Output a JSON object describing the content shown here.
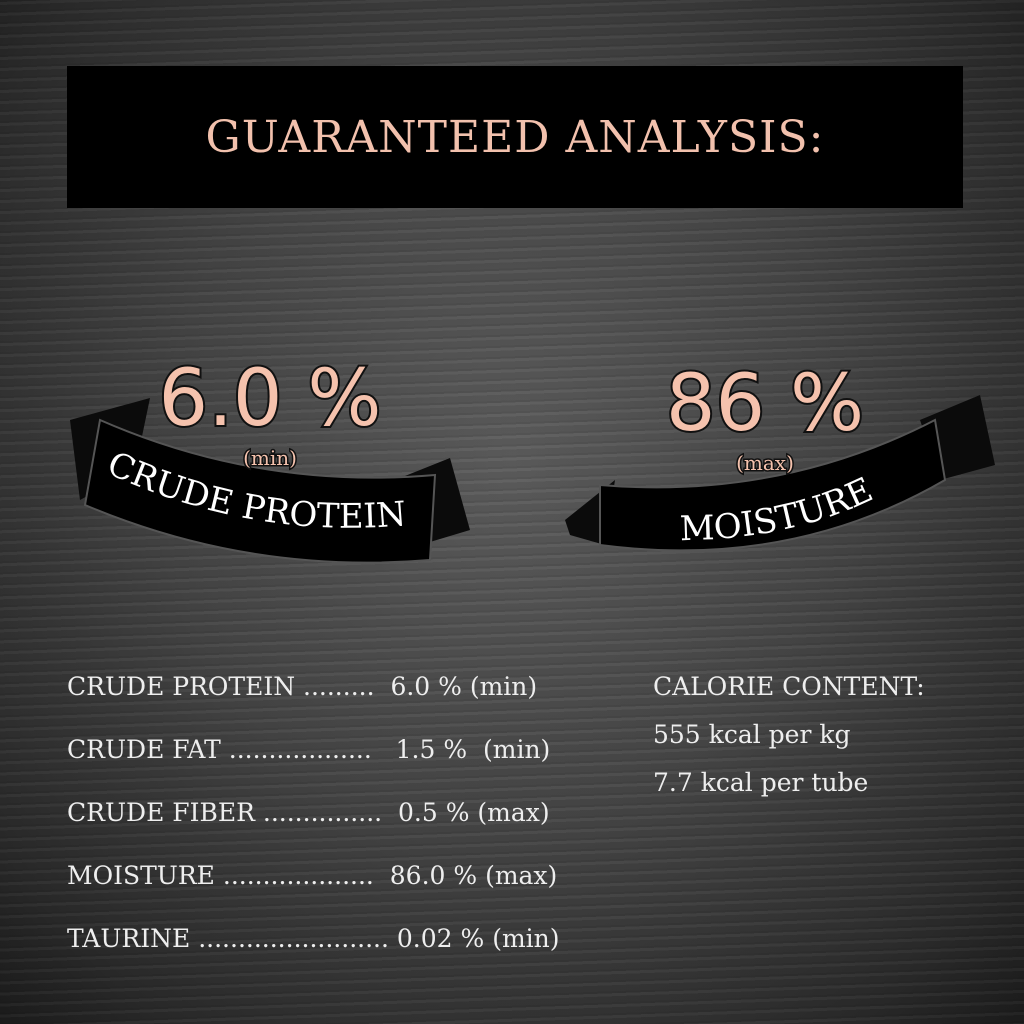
{
  "title": "GUARANTEED ANALYSIS:",
  "badges": [
    {
      "value": "6.0 %",
      "qualifier": "(min)",
      "label": "CRUDE PROTEIN"
    },
    {
      "value": "86 %",
      "qualifier": "(max)",
      "label": "MOISTURE"
    }
  ],
  "analysis": [
    {
      "name": "CRUDE PROTEIN",
      "dots": " .........",
      "value": "  6.0 % (min)"
    },
    {
      "name": "CRUDE FAT",
      "dots": " ..................",
      "value": "   1.5 %  (min)"
    },
    {
      "name": "CRUDE FIBER",
      "dots": " ...............",
      "value": "  0.5 % (max)"
    },
    {
      "name": "MOISTURE",
      "dots": " ...................",
      "value": "  86.0 % (max)"
    },
    {
      "name": "TAURINE",
      "dots": " ........................",
      "value": " 0.02 % (min)"
    }
  ],
  "calorie": {
    "heading": "CALORIE CONTENT:",
    "per_kg": "555 kcal per kg",
    "per_tube": "7.7 kcal per tube"
  },
  "colors": {
    "accent": "#f5c2ad",
    "bar": "#000000"
  }
}
